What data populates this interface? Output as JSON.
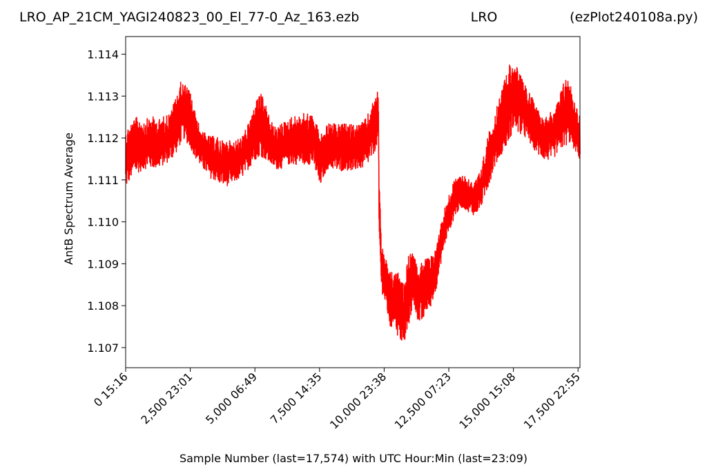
{
  "header": {
    "filename": "LRO_AP_21CM_YAGI240823_00_El_77-0_Az_163.ezb",
    "station": "LRO",
    "script": "(ezPlot240108a.py)"
  },
  "chart_data": {
    "type": "line",
    "title": "",
    "xlabel": "Sample Number (last=17,574) with UTC Hour:Min (last=23:09)",
    "ylabel": "AntB Spectrum Average",
    "xlim": [
      0,
      17574
    ],
    "ylim": [
      1.10652,
      1.11442
    ],
    "x_ticks": [
      {
        "value": 0,
        "label": "0  15:16"
      },
      {
        "value": 2500,
        "label": "2,500  23:01"
      },
      {
        "value": 5000,
        "label": "5,000  06:49"
      },
      {
        "value": 7500,
        "label": "7,500  14:35"
      },
      {
        "value": 10000,
        "label": "10,000  23:38"
      },
      {
        "value": 12500,
        "label": "12,500  07:23"
      },
      {
        "value": 15000,
        "label": "15,000  15:08"
      },
      {
        "value": 17500,
        "label": "17,500  22:55"
      }
    ],
    "y_ticks": [
      1.107,
      1.108,
      1.109,
      1.11,
      1.111,
      1.112,
      1.113,
      1.114
    ],
    "grid": false,
    "legend": "none",
    "series": [
      {
        "color": "#ff0000",
        "band": [
          [
            0,
            1.1107,
            1.1123
          ],
          [
            250,
            1.111,
            1.1125
          ],
          [
            500,
            1.1111,
            1.1126
          ],
          [
            750,
            1.1112,
            1.1125
          ],
          [
            1000,
            1.1112,
            1.1126
          ],
          [
            1250,
            1.1112,
            1.1125
          ],
          [
            1500,
            1.1113,
            1.1126
          ],
          [
            1750,
            1.1114,
            1.1127
          ],
          [
            2000,
            1.1116,
            1.1132
          ],
          [
            2150,
            1.1118,
            1.11345
          ],
          [
            2250,
            1.1119,
            1.1134
          ],
          [
            2500,
            1.1117,
            1.1132
          ],
          [
            2750,
            1.1114,
            1.1125
          ],
          [
            3000,
            1.1112,
            1.1122
          ],
          [
            3250,
            1.111,
            1.1121
          ],
          [
            3500,
            1.1109,
            1.1121
          ],
          [
            3750,
            1.1108,
            1.112
          ],
          [
            4000,
            1.1108,
            1.112
          ],
          [
            4250,
            1.1109,
            1.112
          ],
          [
            4500,
            1.111,
            1.1121
          ],
          [
            4750,
            1.1112,
            1.1124
          ],
          [
            5000,
            1.1114,
            1.1129
          ],
          [
            5200,
            1.1115,
            1.1132
          ],
          [
            5400,
            1.1114,
            1.1129
          ],
          [
            5600,
            1.1113,
            1.1125
          ],
          [
            5800,
            1.1112,
            1.1123
          ],
          [
            6000,
            1.1112,
            1.1124
          ],
          [
            6250,
            1.1113,
            1.1125
          ],
          [
            6500,
            1.1113,
            1.1126
          ],
          [
            6750,
            1.1113,
            1.1126
          ],
          [
            7000,
            1.1113,
            1.1127
          ],
          [
            7250,
            1.1113,
            1.1126
          ],
          [
            7400,
            1.111,
            1.1124
          ],
          [
            7500,
            1.1107,
            1.1122
          ],
          [
            7650,
            1.111,
            1.1122
          ],
          [
            7800,
            1.1112,
            1.1124
          ],
          [
            8000,
            1.1112,
            1.1124
          ],
          [
            8250,
            1.1111,
            1.1124
          ],
          [
            8500,
            1.1112,
            1.1124
          ],
          [
            8750,
            1.1111,
            1.1124
          ],
          [
            9000,
            1.1112,
            1.1124
          ],
          [
            9250,
            1.1112,
            1.1125
          ],
          [
            9500,
            1.1114,
            1.1128
          ],
          [
            9700,
            1.1117,
            1.1132
          ],
          [
            9780,
            1.1118,
            1.1132
          ],
          [
            9800,
            1.1095,
            1.1115
          ],
          [
            9900,
            1.1083,
            1.1095
          ],
          [
            10100,
            1.1078,
            1.1091
          ],
          [
            10250,
            1.1073,
            1.1089
          ],
          [
            10400,
            1.1076,
            1.1088
          ],
          [
            10500,
            1.1072,
            1.109
          ],
          [
            10600,
            1.1071,
            1.1087
          ],
          [
            10750,
            1.1069,
            1.1086
          ],
          [
            10900,
            1.1072,
            1.1092
          ],
          [
            11000,
            1.1076,
            1.1094
          ],
          [
            11150,
            1.1079,
            1.1093
          ],
          [
            11300,
            1.1076,
            1.1089
          ],
          [
            11400,
            1.1074,
            1.1092
          ],
          [
            11500,
            1.1075,
            1.1091
          ],
          [
            11600,
            1.1078,
            1.1092
          ],
          [
            11750,
            1.1078,
            1.1092
          ],
          [
            11900,
            1.1081,
            1.1093
          ],
          [
            12000,
            1.1083,
            1.1095
          ],
          [
            12150,
            1.1088,
            1.1099
          ],
          [
            12300,
            1.1093,
            1.1103
          ],
          [
            12500,
            1.1097,
            1.1107
          ],
          [
            12750,
            1.1101,
            1.1111
          ],
          [
            13000,
            1.1103,
            1.1112
          ],
          [
            13250,
            1.1102,
            1.1111
          ],
          [
            13500,
            1.1101,
            1.111
          ],
          [
            13750,
            1.1103,
            1.1113
          ],
          [
            14000,
            1.1107,
            1.1121
          ],
          [
            14250,
            1.1112,
            1.1126
          ],
          [
            14500,
            1.1115,
            1.1131
          ],
          [
            14750,
            1.1117,
            1.1138
          ],
          [
            15000,
            1.1121,
            1.114
          ],
          [
            15250,
            1.112,
            1.1136
          ],
          [
            15500,
            1.1119,
            1.1133
          ],
          [
            15750,
            1.1117,
            1.113
          ],
          [
            16000,
            1.1115,
            1.1127
          ],
          [
            16250,
            1.1114,
            1.1126
          ],
          [
            16500,
            1.1114,
            1.1127
          ],
          [
            16750,
            1.1116,
            1.113
          ],
          [
            17000,
            1.1117,
            1.1136
          ],
          [
            17200,
            1.1118,
            1.1134
          ],
          [
            17400,
            1.1116,
            1.1129
          ],
          [
            17574,
            1.1114,
            1.1126
          ]
        ]
      }
    ]
  }
}
